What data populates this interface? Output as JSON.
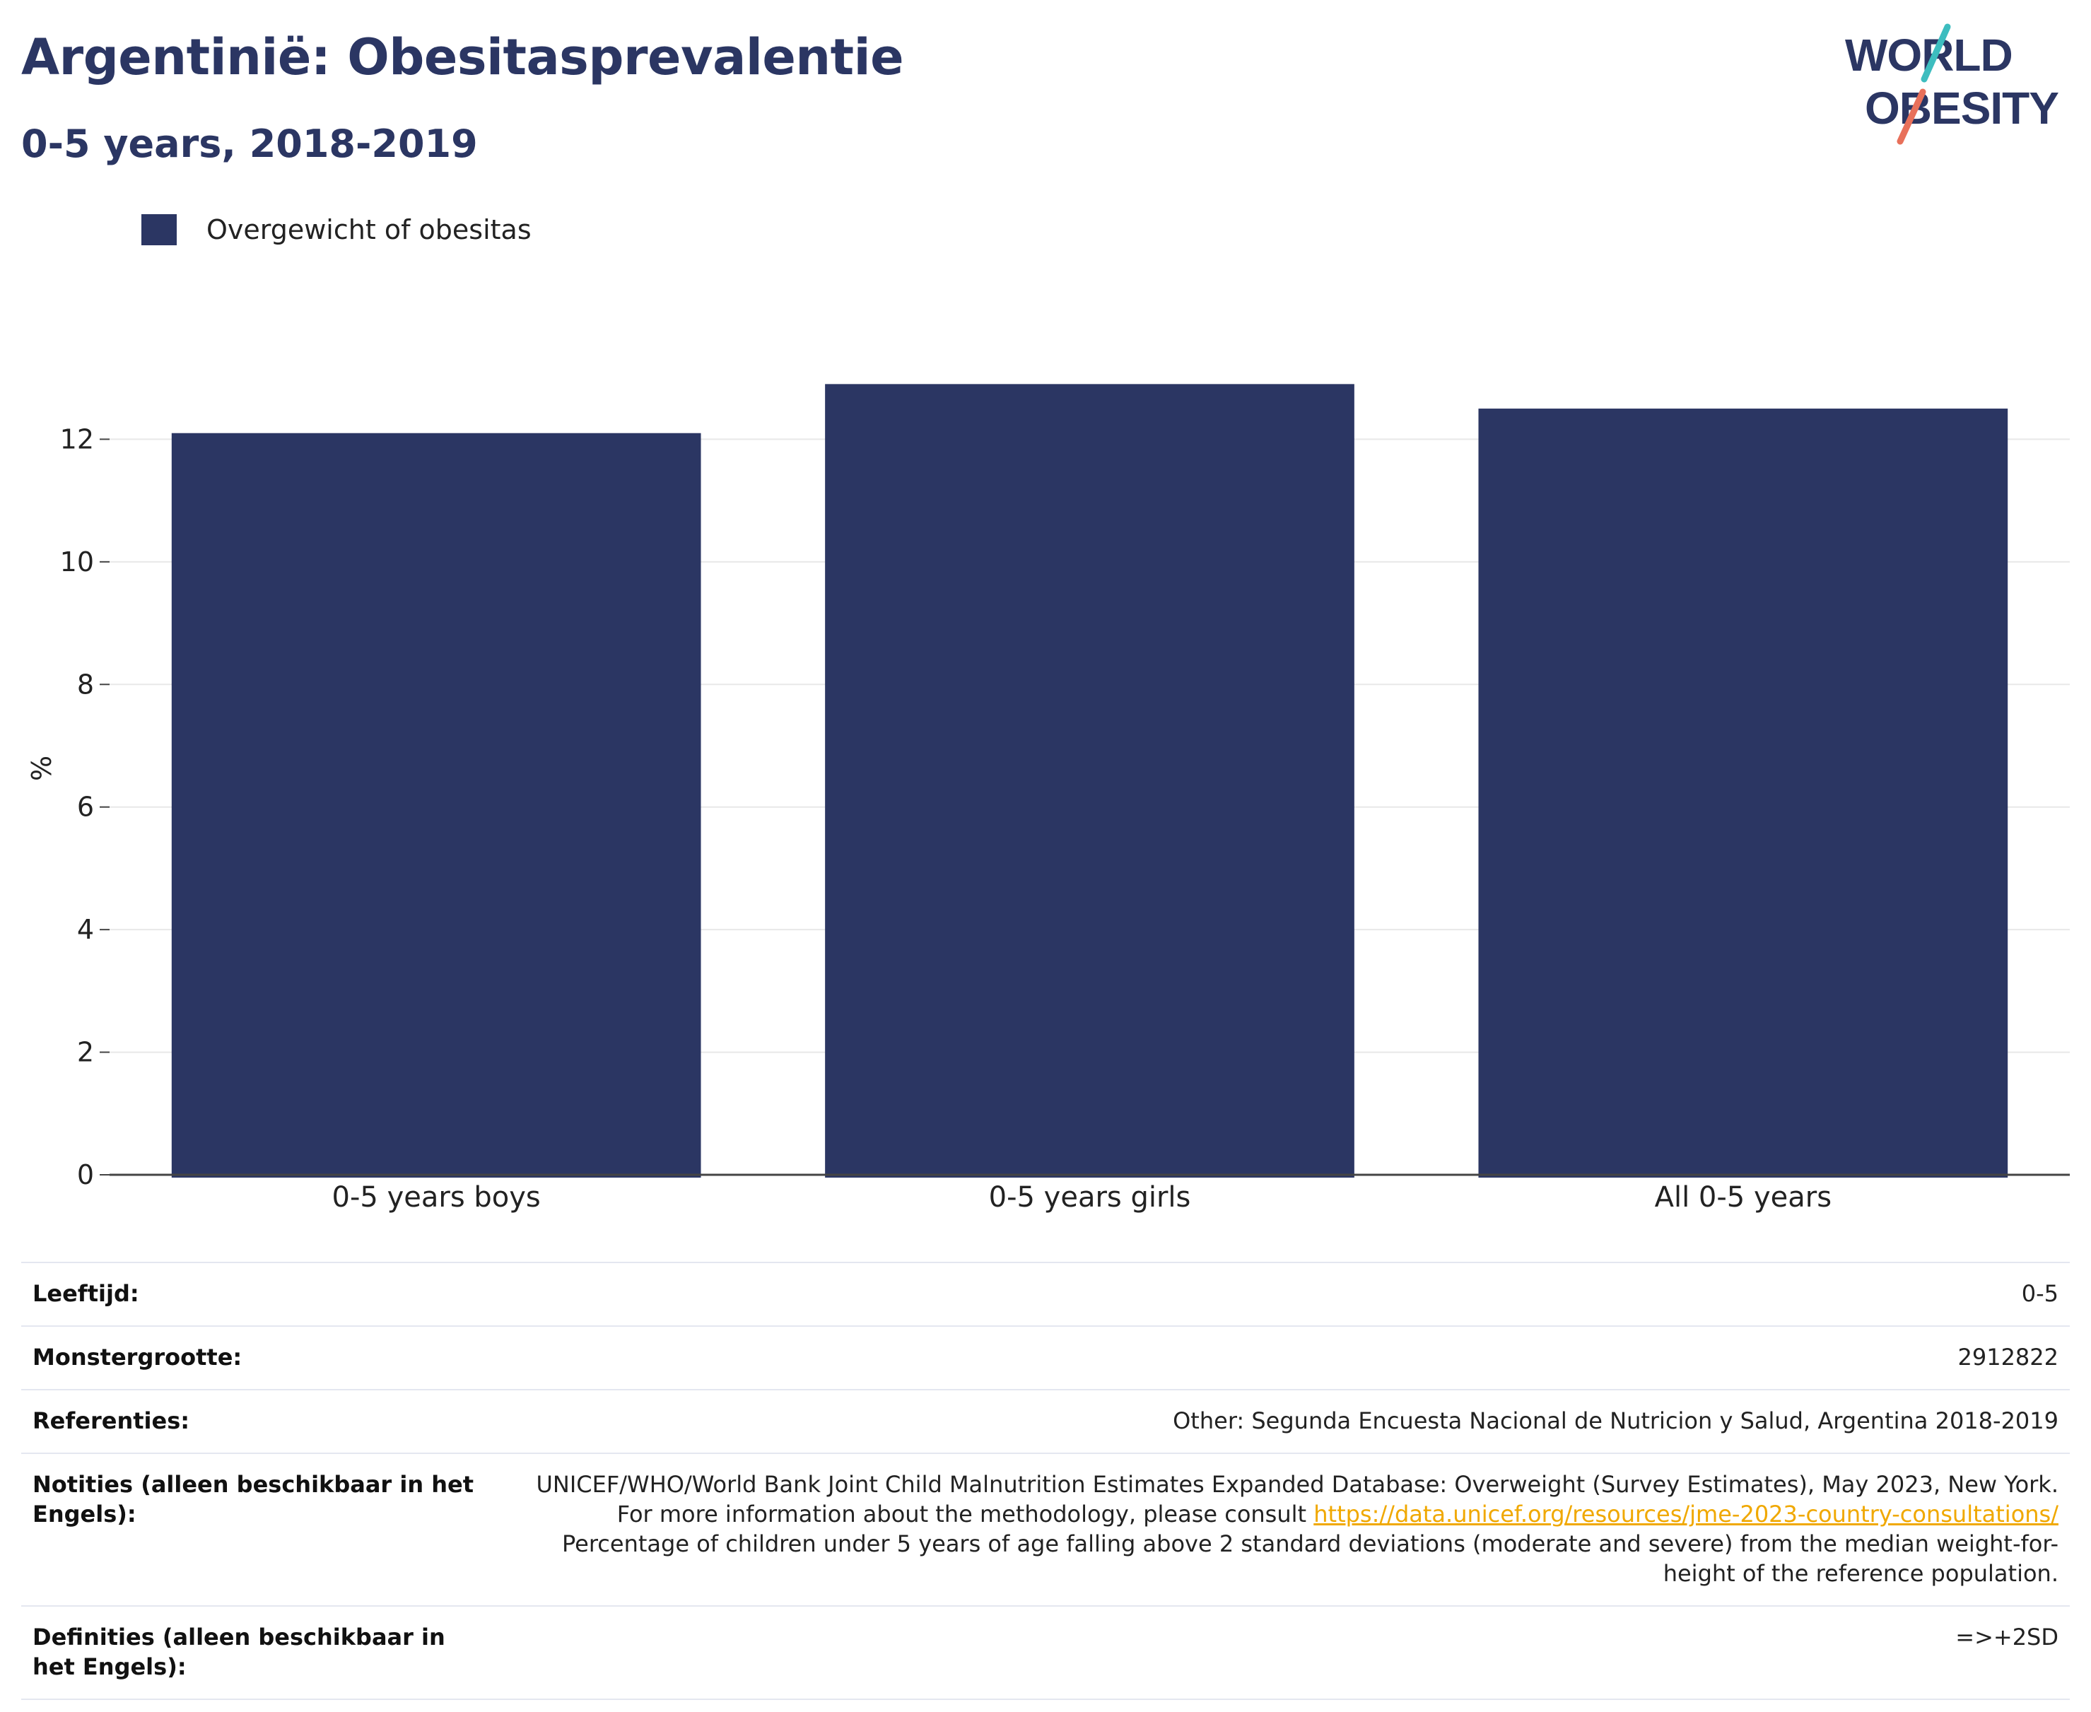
{
  "header": {
    "title": "Argentinië: Obesitasprevalentie",
    "subtitle": "0-5 years, 2018-2019"
  },
  "logo": {
    "line1": "WORLD",
    "line2": "OBESITY",
    "colors": {
      "text": "#2b3663",
      "slash_top": "#3dbdbf",
      "slash_bottom": "#e8705a"
    }
  },
  "legend": {
    "items": [
      {
        "label": "Overgewicht of obesitas",
        "color": "#2b3663"
      }
    ]
  },
  "chart_data": {
    "type": "bar",
    "categories": [
      "0-5 years boys",
      "0-5 years girls",
      "All 0-5 years"
    ],
    "series": [
      {
        "name": "Overgewicht of obesitas",
        "values": [
          12.1,
          12.9,
          12.5
        ],
        "color": "#2b3663"
      }
    ],
    "ylabel": "%",
    "ylim": [
      0,
      13.4
    ],
    "yticks": [
      0,
      2,
      4,
      6,
      8,
      10,
      12
    ],
    "grid": true,
    "legend_position": "top-left"
  },
  "info_table": {
    "rows": [
      {
        "label": "Leeftijd:",
        "value": "0-5"
      },
      {
        "label": "Monstergrootte:",
        "value": "2912822"
      },
      {
        "label": "Referenties:",
        "value": "Other: Segunda Encuesta Nacional de Nutricion y Salud, Argentina 2018-2019"
      },
      {
        "label": "Notities (alleen beschikbaar in het Engels):",
        "value_before": "UNICEF/WHO/World Bank Joint Child Malnutrition Estimates Expanded Database: Overweight (Survey Estimates), May 2023, New York. For more information about the methodology, please consult",
        "link": "https://data.unicef.org/resources/jme-2023-country-consultations/",
        "value_after": "Percentage of children under 5 years of age falling above 2 standard deviations (moderate and severe) from the median weight-for-height of the reference population."
      },
      {
        "label": "Definities (alleen beschikbaar in het Engels):",
        "value": "=>+2SD"
      }
    ]
  }
}
